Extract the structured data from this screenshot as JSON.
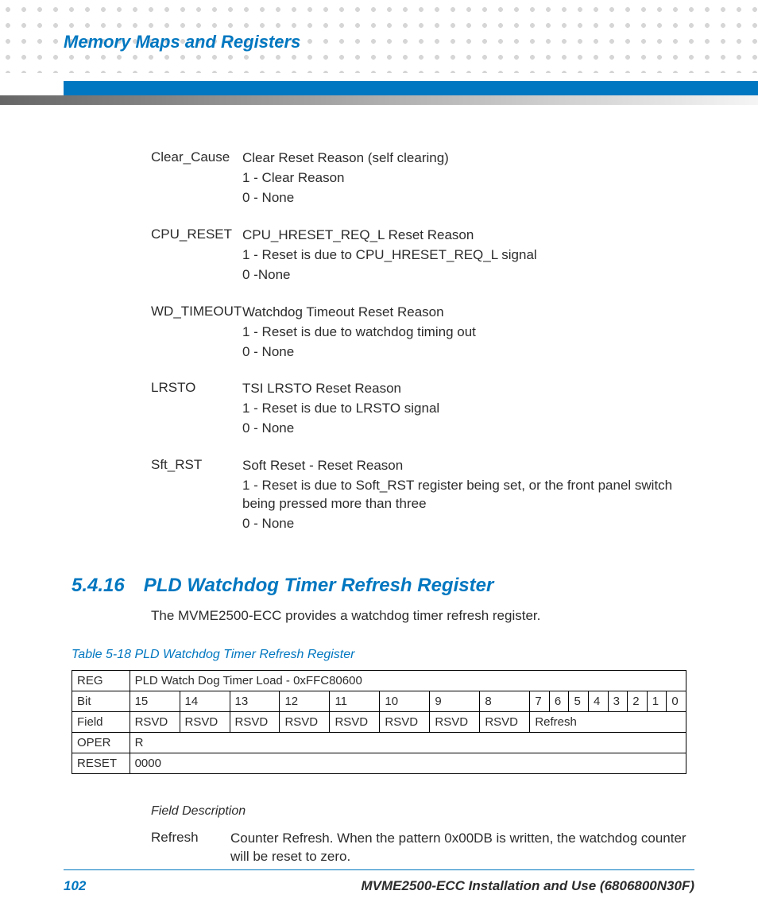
{
  "header": {
    "title": "Memory Maps and Registers"
  },
  "colors": {
    "accent": "#0077c0",
    "text": "#2c2c2c",
    "dot": "#d6d6d6",
    "grad_start": "#666666",
    "grad_end": "#f5f5f5",
    "border": "#000000",
    "background": "#ffffff"
  },
  "definitions": [
    {
      "key": "Clear_Cause",
      "lines": [
        "Clear Reset Reason (self clearing)",
        "1 - Clear Reason",
        "0 - None"
      ]
    },
    {
      "key": "CPU_RESET",
      "lines": [
        "CPU_HRESET_REQ_L Reset Reason",
        "1 - Reset is due to CPU_HRESET_REQ_L signal",
        "0 -None"
      ]
    },
    {
      "key": "WD_TIMEOUT",
      "lines": [
        "Watchdog Timeout Reset Reason",
        "1 - Reset is due to watchdog timing out",
        "0 - None"
      ]
    },
    {
      "key": "LRSTO",
      "lines": [
        "TSI LRSTO Reset Reason",
        "1 - Reset is due to LRSTO signal",
        "0 - None"
      ]
    },
    {
      "key": "Sft_RST",
      "lines": [
        "Soft Reset - Reset Reason",
        "1 - Reset is due to Soft_RST register being set, or the front panel switch being pressed more than three",
        "0 - None"
      ]
    }
  ],
  "section": {
    "number": "5.4.16",
    "title": "PLD Watchdog Timer Refresh Register",
    "intro": "The MVME2500-ECC provides a watchdog timer refresh register."
  },
  "table": {
    "caption": "Table 5-18 PLD Watchdog Timer Refresh Register",
    "reg_label": "REG",
    "reg_value": "PLD Watch Dog Timer Load - 0xFFC80600",
    "bit_label": "Bit",
    "bits": [
      "15",
      "14",
      "13",
      "12",
      "11",
      "10",
      "9",
      "8",
      "7",
      "6",
      "5",
      "4",
      "3",
      "2",
      "1",
      "0"
    ],
    "field_label": "Field",
    "fields": [
      "RSVD",
      "RSVD",
      "RSVD",
      "RSVD",
      "RSVD",
      "RSVD",
      "RSVD",
      "RSVD"
    ],
    "field_refresh": "Refresh",
    "oper_label": "OPER",
    "oper_value": "R",
    "reset_label": "RESET",
    "reset_value": "0000"
  },
  "field_desc": {
    "heading": "Field Description",
    "label": "Refresh",
    "text": "Counter Refresh. When the pattern 0x00DB is written, the watchdog counter will be reset to zero."
  },
  "footer": {
    "page": "102",
    "doc": "MVME2500-ECC Installation and Use (6806800N30F)"
  }
}
